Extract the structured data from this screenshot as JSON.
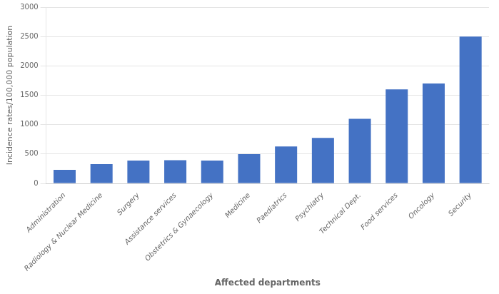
{
  "chart_data": {
    "type": "bar",
    "categories": [
      "Administration",
      "Radiology & Nuclear Medicine",
      "Surgery",
      "Assistance services",
      "Obstetrics & Gynaecology",
      "Medicine",
      "Paediatrics",
      "Psychiatry",
      "Technical Dept.",
      "Food services",
      "Oncology",
      "Security"
    ],
    "values": [
      230,
      330,
      390,
      395,
      390,
      500,
      630,
      775,
      1100,
      1600,
      1700,
      2500
    ],
    "color": "#4472C4",
    "xlabel": "Affected departments",
    "ylabel": "Incidence rates/100,000 population",
    "ylim": [
      0,
      3000
    ],
    "yticks": [
      0,
      500,
      1000,
      1500,
      2000,
      2500,
      3000
    ],
    "grid": true
  }
}
